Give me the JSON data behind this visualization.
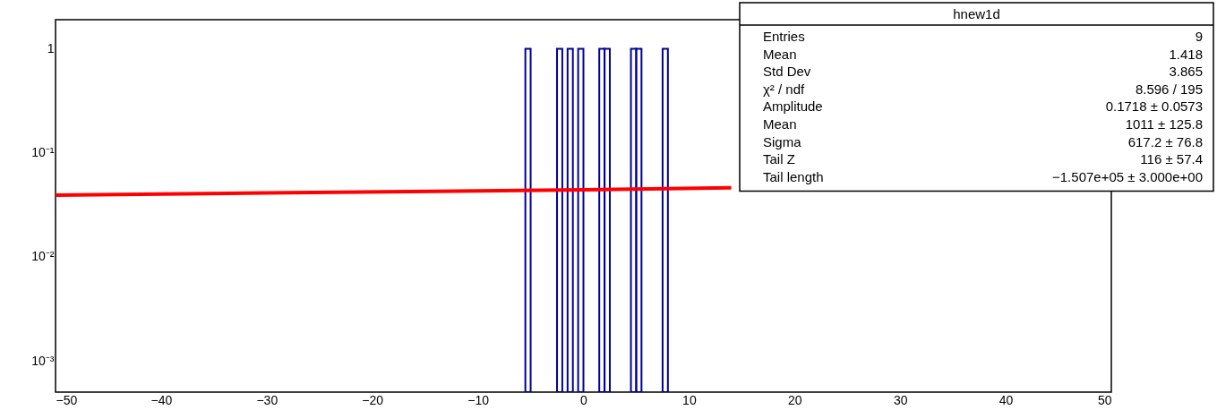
{
  "chart_data": {
    "type": "histogram",
    "log": "y",
    "grid": false,
    "xlim": [
      -50,
      50
    ],
    "xticks": [
      {
        "value": -50,
        "label": "−50"
      },
      {
        "value": -40,
        "label": "−40"
      },
      {
        "value": -30,
        "label": "−30"
      },
      {
        "value": -20,
        "label": "−20"
      },
      {
        "value": -10,
        "label": "−10"
      },
      0,
      10,
      20,
      30,
      40,
      50
    ],
    "ylim": [
      0.0005,
      1.9
    ],
    "yticks": [
      {
        "value": 0.001,
        "label": "10⁻³"
      },
      {
        "value": 0.01,
        "label": "10⁻²"
      },
      {
        "value": 0.1,
        "label": "10⁻¹"
      },
      1
    ],
    "series": [
      {
        "color": "#000099",
        "bins": [
          -5.5,
          -5,
          -4.5,
          -4,
          -3.5,
          -3,
          -2.5,
          -2,
          -1.5,
          -1,
          -0.5,
          0,
          0.5,
          1,
          1.5,
          2,
          2.5,
          3,
          3.5,
          4,
          4.5,
          5,
          5.5,
          6,
          6.5,
          7,
          7.5,
          8
        ],
        "values": [
          1,
          null,
          null,
          null,
          null,
          null,
          1,
          null,
          1,
          null,
          1,
          null,
          null,
          null,
          1,
          1,
          null,
          null,
          null,
          null,
          1,
          1,
          null,
          null,
          null,
          null,
          1
        ]
      },
      {
        "type": "line",
        "color": "#ff0000",
        "x": [
          -50,
          -30,
          -10,
          0,
          14
        ],
        "values": [
          0.039,
          0.041,
          0.043,
          0.044,
          0.046
        ]
      }
    ],
    "annotations": [
      "hnew1d",
      "Entries",
      "9",
      "Mean",
      "1.418",
      "Std Dev",
      "3.865",
      "χ² / ndf",
      "8.596 / 195",
      "Amplitude",
      "0.1718 ± 0.0573",
      "Mean",
      "1011 ± 125.8",
      "Sigma",
      "617.2 ± 76.8",
      "Tail Z",
      "116 ± 57.4",
      "Tail length",
      "−1.507e+05 ± 3.000e+00"
    ]
  }
}
